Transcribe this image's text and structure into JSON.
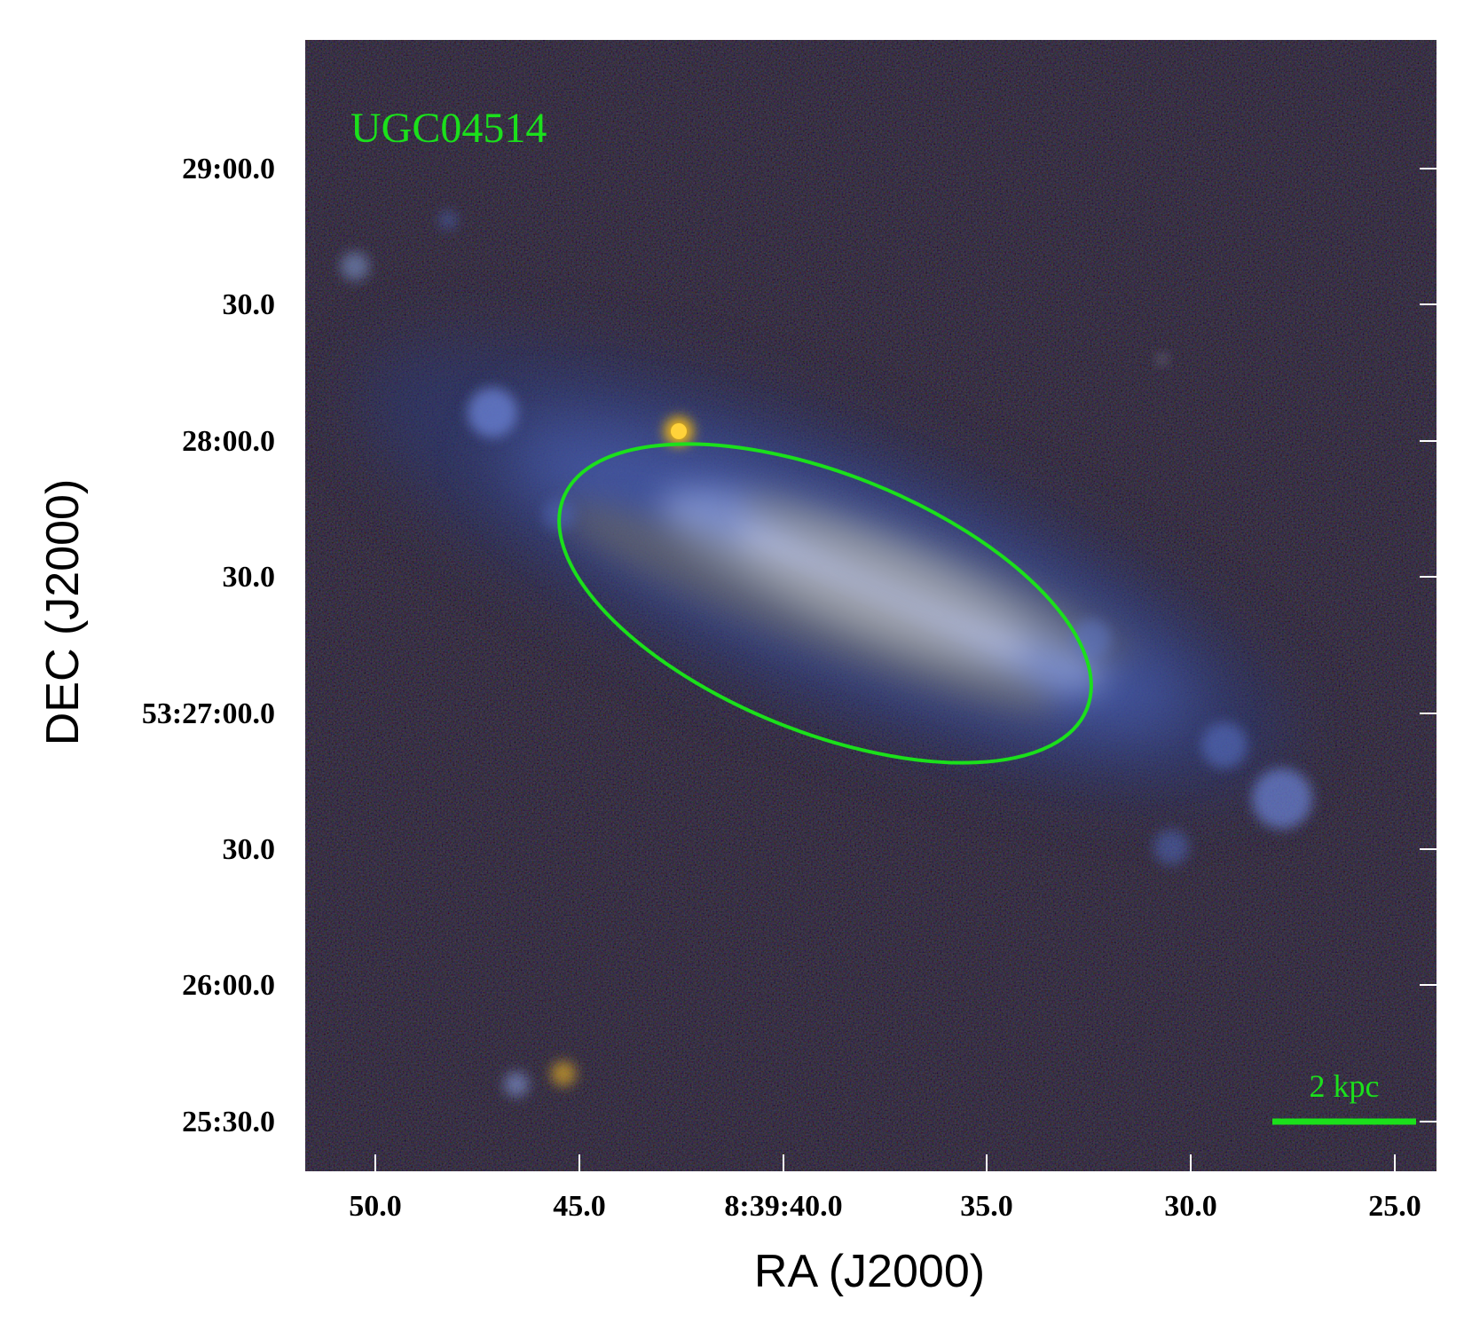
{
  "object_name": "UGC04514",
  "scale_bar": {
    "label": "2 kpc"
  },
  "axes": {
    "xlabel": "RA (J2000)",
    "ylabel": "DEC (J2000)",
    "x_ticks": [
      "50.0",
      "45.0",
      "8:39:40.0",
      "35.0",
      "30.0",
      "25.0"
    ],
    "y_ticks": [
      "29:00.0",
      "30.0",
      "28:00.0",
      "30.0",
      "53:27:00.0",
      "30.0",
      "26:00.0",
      "25:30.0"
    ]
  },
  "colors": {
    "background": "#000000",
    "annotation": "#1be01b",
    "galaxy_core": "#aab6e0",
    "galaxy_arms": "#3e55a8",
    "foreground_star": "#e8b010"
  }
}
